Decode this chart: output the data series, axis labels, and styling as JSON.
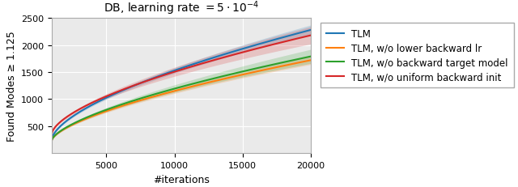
{
  "title": "DB, learning rate $= 5 \\cdot 10^{-4}$",
  "xlabel": "#iterations",
  "ylabel": "Found Modes ≥ 1.125",
  "xlim": [
    1000,
    20000
  ],
  "ylim": [
    0,
    2500
  ],
  "xticks": [
    5000,
    10000,
    15000,
    20000
  ],
  "yticks": [
    500,
    1000,
    1500,
    2000,
    2500
  ],
  "x_start": 1000,
  "x_end": 20000,
  "n_points": 300,
  "curves": [
    {
      "label": "TLM",
      "color": "#1f77b4",
      "y0": 255,
      "y1": 2280,
      "power": 0.62,
      "std0": 15,
      "std1": 90
    },
    {
      "label": "TLM, w/o lower backward lr",
      "color": "#ff7f0e",
      "y0": 240,
      "y1": 1720,
      "power": 0.65,
      "std0": 15,
      "std1": 80
    },
    {
      "label": "TLM, w/o backward target model",
      "color": "#2ca02c",
      "y0": 240,
      "y1": 1790,
      "power": 0.65,
      "std0": 15,
      "std1": 130
    },
    {
      "label": "TLM, w/o uniform backward init",
      "color": "#d62728",
      "y0": 360,
      "y1": 2180,
      "power": 0.62,
      "std0": 15,
      "std1": 160
    }
  ],
  "background_color": "#eaeaea",
  "grid_color": "white",
  "title_fontsize": 10,
  "label_fontsize": 9,
  "tick_fontsize": 8,
  "legend_fontsize": 8.5
}
